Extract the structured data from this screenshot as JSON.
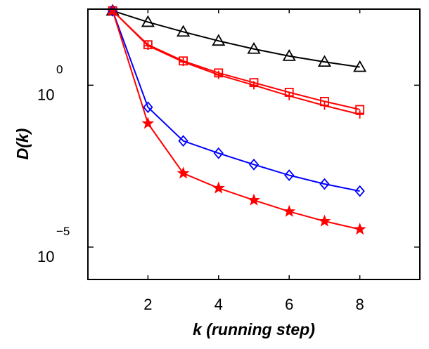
{
  "chart_data": {
    "type": "line",
    "title": "",
    "xlabel": "k (running step)",
    "ylabel": "D(k)",
    "yscale": "log",
    "xlim": [
      0.3,
      9.7
    ],
    "ylim_exp": [
      -6,
      2.35
    ],
    "x_ticks": [
      2,
      4,
      6,
      8
    ],
    "y_ticks": [
      {
        "base": "10",
        "exp": "0",
        "value_exp": 0
      },
      {
        "base": "10",
        "exp": "−5",
        "value_exp": -5
      }
    ],
    "x": [
      1,
      2,
      3,
      4,
      5,
      6,
      7,
      8
    ],
    "series": [
      {
        "name": "triangle",
        "color": "#000000",
        "marker": "triangle",
        "values_log10": [
          2.3,
          1.95,
          1.65,
          1.37,
          1.12,
          0.9,
          0.72,
          0.56
        ]
      },
      {
        "name": "square",
        "color": "#ff0000",
        "marker": "square",
        "values_log10": [
          2.3,
          1.25,
          0.75,
          0.38,
          0.08,
          -0.22,
          -0.5,
          -0.75
        ]
      },
      {
        "name": "plus",
        "color": "#ff0000",
        "marker": "plus",
        "values_log10": [
          2.3,
          1.22,
          0.72,
          0.32,
          0.0,
          -0.33,
          -0.63,
          -0.9
        ]
      },
      {
        "name": "diamond",
        "color": "#0000ff",
        "marker": "diamond",
        "values_log10": [
          2.3,
          -0.68,
          -1.72,
          -2.1,
          -2.45,
          -2.78,
          -3.05,
          -3.27
        ]
      },
      {
        "name": "star",
        "color": "#ff0000",
        "marker": "star",
        "values_log10": [
          2.3,
          -1.18,
          -2.72,
          -3.18,
          -3.55,
          -3.9,
          -4.2,
          -4.45
        ]
      }
    ]
  }
}
